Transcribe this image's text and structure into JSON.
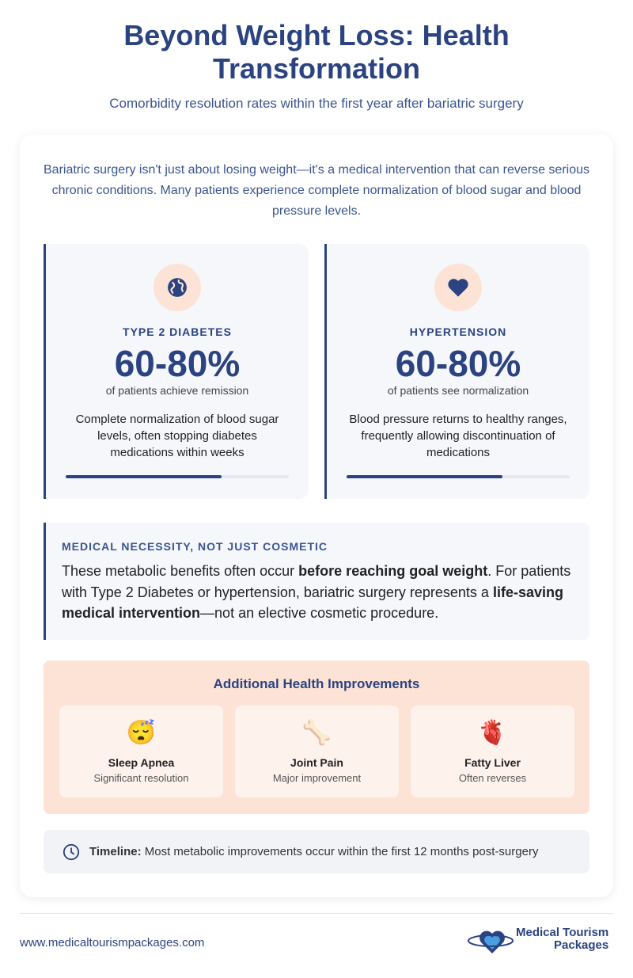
{
  "header": {
    "title": "Beyond Weight Loss: Health Transformation",
    "subtitle": "Comorbidity resolution rates within the first year after bariatric surgery"
  },
  "intro": "Bariatric surgery isn't just about losing weight—it's a medical intervention that can reverse serious chronic conditions. Many patients experience complete normalization of blood sugar and blood pressure levels.",
  "stats": [
    {
      "label": "TYPE 2 DIABETES",
      "value": "60-80%",
      "caption": "of patients achieve remission",
      "description": "Complete normalization of blood sugar levels, often stopping diabetes medications within weeks",
      "progress": 70
    },
    {
      "label": "HYPERTENSION",
      "value": "60-80%",
      "caption": "of patients see normalization",
      "description": "Blood pressure returns to healthy ranges, frequently allowing discontinuation of medications",
      "progress": 70
    }
  ],
  "callout": {
    "heading": "MEDICAL NECESSITY, NOT JUST COSMETIC",
    "body": [
      {
        "text": "These metabolic benefits often occur ",
        "bold": false
      },
      {
        "text": "before reaching goal weight",
        "bold": true
      },
      {
        "text": ". For patients with Type 2 Diabetes or hypertension, bariatric surgery represents a ",
        "bold": false
      },
      {
        "text": "life-saving medical intervention",
        "bold": true
      },
      {
        "text": "—not an elective cosmetic procedure.",
        "bold": false
      }
    ]
  },
  "improvements": {
    "title": "Additional Health Improvements",
    "items": [
      {
        "icon": "😴",
        "name": "Sleep Apnea",
        "detail": "Significant resolution"
      },
      {
        "icon": "🦴",
        "name": "Joint Pain",
        "detail": "Major improvement"
      },
      {
        "icon": "🫀",
        "name": "Fatty Liver",
        "detail": "Often reverses"
      }
    ]
  },
  "timeline": {
    "label": "Timeline:",
    "text": "Most metabolic improvements occur within the first 12 months post-surgery"
  },
  "footer": {
    "url": "www.medicaltourismpackages.com",
    "logo_line1": "Medical Tourism",
    "logo_line2": "Packages"
  }
}
